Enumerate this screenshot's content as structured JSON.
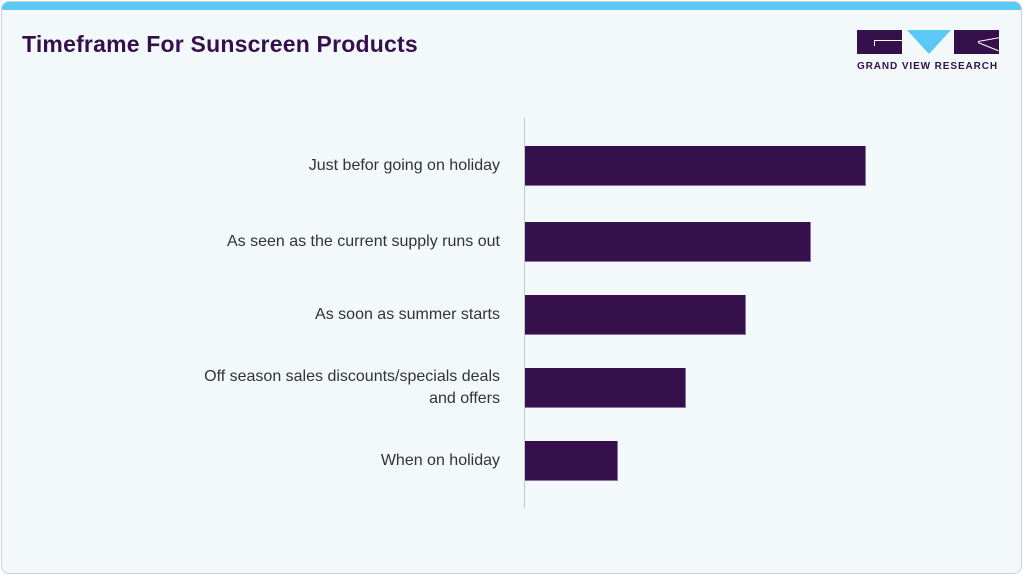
{
  "header": {
    "title": "Timeframe For Sunscreen Products",
    "logo_text": "GRAND VIEW RESEARCH"
  },
  "colors": {
    "bar": "#36104a",
    "accent": "#5bc8f5",
    "background": "#f3f8fb"
  },
  "chart_data": {
    "type": "bar",
    "orientation": "horizontal",
    "title": "Timeframe For Sunscreen Products",
    "categories": [
      "Just befor going on holiday",
      "As seen as the current supply runs out",
      "As soon as summer starts",
      "Off season sales discounts/specials deals and offers",
      "When on holiday"
    ],
    "category_lines": [
      [
        "Just befor going on holiday"
      ],
      [
        "As seen as the current supply runs out"
      ],
      [
        "As soon as summer starts"
      ],
      [
        "Off season sales discounts/specials deals",
        "and offers"
      ],
      [
        "When on holiday"
      ]
    ],
    "values": [
      341,
      286,
      221,
      161,
      93
    ],
    "value_units": "relative bar length (px), no axis values shown",
    "xlabel": "",
    "ylabel": "",
    "grid": false,
    "legend": null
  }
}
